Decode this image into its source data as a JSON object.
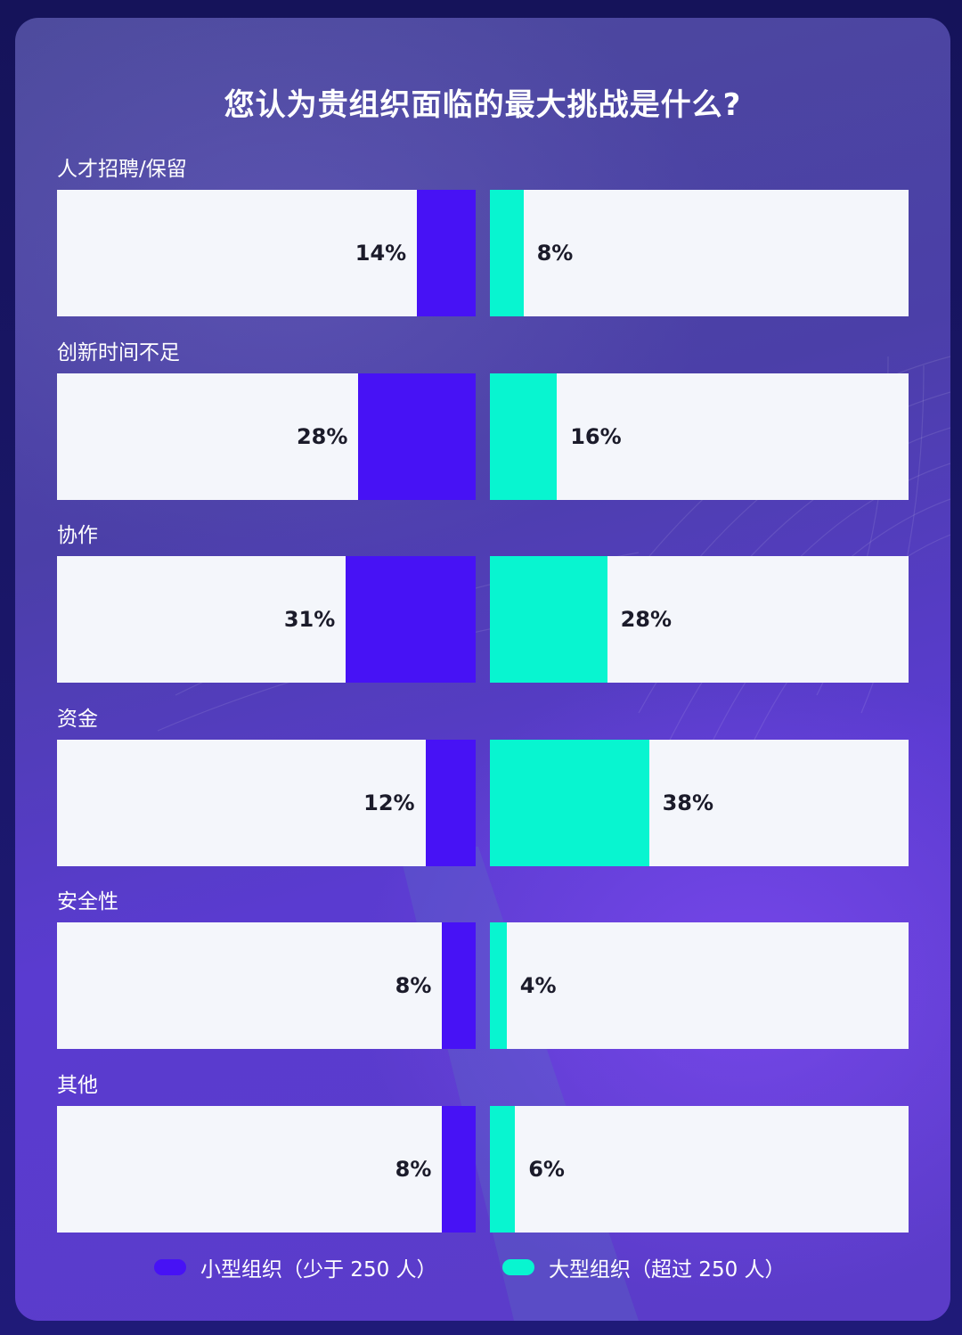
{
  "chart_data": {
    "type": "bar",
    "title": "您认为贵组织面临的最大挑战是什么?",
    "categories": [
      "人才招聘/保留",
      "创新时间不足",
      "协作",
      "资金",
      "安全性",
      "其他"
    ],
    "series": [
      {
        "name": "小型组织（少于 250 人）",
        "values": [
          14,
          28,
          31,
          12,
          8,
          8
        ],
        "labels": [
          "14%",
          "28%",
          "31%",
          "12%",
          "8%",
          "8%"
        ],
        "color": "#4712f5"
      },
      {
        "name": "大型组织（超过 250 人）",
        "values": [
          8,
          16,
          28,
          38,
          4,
          6
        ],
        "labels": [
          "8%",
          "16%",
          "28%",
          "38%",
          "4%",
          "6%"
        ],
        "color": "#08f5d0"
      }
    ],
    "xlim": [
      0,
      100
    ],
    "grid": false,
    "legend": "bottom-center"
  }
}
